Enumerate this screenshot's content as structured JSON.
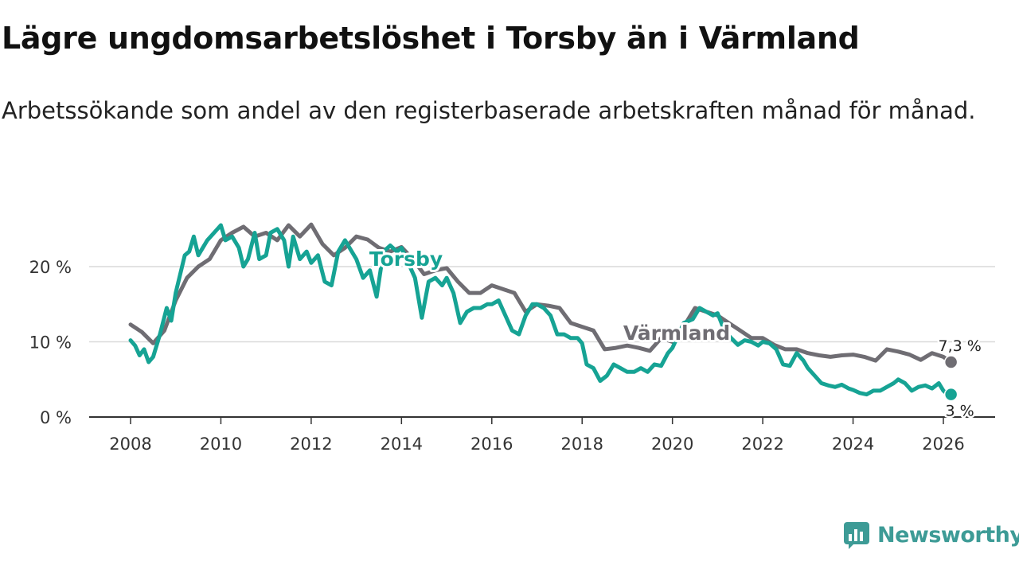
{
  "title": "Lägre ungdomsarbetslöshet i Torsby än i Värmland",
  "subtitle": "Arbetssökande som andel av den registerbaserade arbetskraften månad för månad.",
  "brand": {
    "name": "Newsworthy",
    "icon": "newsworthy-logo-icon",
    "color": "#3d9b96"
  },
  "colors": {
    "torsby": "#16a394",
    "varmland": "#6f6d73",
    "grid": "#d9d9d9",
    "axis": "#333333"
  },
  "chart_data": {
    "type": "line",
    "title": "Lägre ungdomsarbetslöshet i Torsby än i Värmland",
    "xlabel": "",
    "ylabel": "",
    "xlim": [
      2007.5,
      2026.75
    ],
    "ylim": [
      0,
      30
    ],
    "y_ticks": [
      0,
      10,
      20
    ],
    "y_tick_labels": [
      "0 %",
      "10 %",
      "20 %"
    ],
    "x_ticks": [
      2008,
      2010,
      2012,
      2014,
      2016,
      2018,
      2020,
      2022,
      2024,
      2026
    ],
    "x_tick_labels": [
      "2008",
      "2010",
      "2012",
      "2014",
      "2016",
      "2018",
      "2020",
      "2022",
      "2024",
      "2026"
    ],
    "grid": true,
    "series": [
      {
        "name": "Värmland",
        "label": "Värmland",
        "end_label": "7,3 %",
        "end_value": 7.3,
        "points": [
          [
            2008.0,
            12.3
          ],
          [
            2008.25,
            11.3
          ],
          [
            2008.5,
            9.8
          ],
          [
            2008.75,
            11.5
          ],
          [
            2009.0,
            15.5
          ],
          [
            2009.25,
            18.5
          ],
          [
            2009.5,
            20.0
          ],
          [
            2009.75,
            21.0
          ],
          [
            2010.0,
            23.5
          ],
          [
            2010.25,
            24.5
          ],
          [
            2010.5,
            25.3
          ],
          [
            2010.75,
            24.0
          ],
          [
            2011.0,
            24.5
          ],
          [
            2011.25,
            23.5
          ],
          [
            2011.5,
            25.5
          ],
          [
            2011.75,
            24.0
          ],
          [
            2012.0,
            25.6
          ],
          [
            2012.25,
            23.0
          ],
          [
            2012.5,
            21.5
          ],
          [
            2012.75,
            22.5
          ],
          [
            2013.0,
            24.0
          ],
          [
            2013.25,
            23.6
          ],
          [
            2013.5,
            22.5
          ],
          [
            2013.75,
            22.0
          ],
          [
            2014.0,
            22.6
          ],
          [
            2014.25,
            21.0
          ],
          [
            2014.5,
            19.0
          ],
          [
            2014.75,
            19.5
          ],
          [
            2015.0,
            19.8
          ],
          [
            2015.25,
            18.0
          ],
          [
            2015.5,
            16.5
          ],
          [
            2015.75,
            16.5
          ],
          [
            2016.0,
            17.5
          ],
          [
            2016.25,
            17.0
          ],
          [
            2016.5,
            16.5
          ],
          [
            2016.75,
            14.0
          ],
          [
            2017.0,
            15.0
          ],
          [
            2017.25,
            14.8
          ],
          [
            2017.5,
            14.5
          ],
          [
            2017.75,
            12.5
          ],
          [
            2018.0,
            12.0
          ],
          [
            2018.25,
            11.5
          ],
          [
            2018.5,
            9.0
          ],
          [
            2018.75,
            9.2
          ],
          [
            2019.0,
            9.5
          ],
          [
            2019.25,
            9.2
          ],
          [
            2019.5,
            8.8
          ],
          [
            2019.75,
            10.5
          ],
          [
            2020.0,
            10.0
          ],
          [
            2020.25,
            12.0
          ],
          [
            2020.5,
            14.5
          ],
          [
            2020.75,
            14.0
          ],
          [
            2021.0,
            13.5
          ],
          [
            2021.25,
            12.5
          ],
          [
            2021.5,
            11.5
          ],
          [
            2021.75,
            10.5
          ],
          [
            2022.0,
            10.5
          ],
          [
            2022.25,
            9.6
          ],
          [
            2022.5,
            9.0
          ],
          [
            2022.75,
            9.0
          ],
          [
            2023.0,
            8.5
          ],
          [
            2023.25,
            8.2
          ],
          [
            2023.5,
            8.0
          ],
          [
            2023.75,
            8.2
          ],
          [
            2024.0,
            8.3
          ],
          [
            2024.25,
            8.0
          ],
          [
            2024.5,
            7.5
          ],
          [
            2024.75,
            9.0
          ],
          [
            2025.0,
            8.7
          ],
          [
            2025.25,
            8.3
          ],
          [
            2025.5,
            7.6
          ],
          [
            2025.75,
            8.5
          ],
          [
            2026.0,
            8.0
          ],
          [
            2026.17,
            7.3
          ]
        ]
      },
      {
        "name": "Torsby",
        "label": "Torsby",
        "end_label": "3 %",
        "end_value": 3.0,
        "points": [
          [
            2008.0,
            10.2
          ],
          [
            2008.1,
            9.5
          ],
          [
            2008.2,
            8.2
          ],
          [
            2008.3,
            9.0
          ],
          [
            2008.4,
            7.3
          ],
          [
            2008.5,
            8.0
          ],
          [
            2008.65,
            11.0
          ],
          [
            2008.8,
            14.5
          ],
          [
            2008.9,
            12.8
          ],
          [
            2009.0,
            16.5
          ],
          [
            2009.2,
            21.5
          ],
          [
            2009.3,
            22.0
          ],
          [
            2009.4,
            24.0
          ],
          [
            2009.5,
            21.5
          ],
          [
            2009.7,
            23.5
          ],
          [
            2009.85,
            24.5
          ],
          [
            2010.0,
            25.5
          ],
          [
            2010.1,
            23.5
          ],
          [
            2010.25,
            24.0
          ],
          [
            2010.4,
            22.5
          ],
          [
            2010.5,
            20.0
          ],
          [
            2010.6,
            21.0
          ],
          [
            2010.75,
            24.5
          ],
          [
            2010.85,
            21.0
          ],
          [
            2011.0,
            21.5
          ],
          [
            2011.1,
            24.5
          ],
          [
            2011.25,
            25.0
          ],
          [
            2011.4,
            23.5
          ],
          [
            2011.5,
            20.0
          ],
          [
            2011.6,
            24.0
          ],
          [
            2011.75,
            21.0
          ],
          [
            2011.9,
            22.0
          ],
          [
            2012.0,
            20.5
          ],
          [
            2012.15,
            21.5
          ],
          [
            2012.3,
            18.0
          ],
          [
            2012.45,
            17.5
          ],
          [
            2012.6,
            22.0
          ],
          [
            2012.75,
            23.5
          ],
          [
            2012.9,
            22.0
          ],
          [
            2013.0,
            21.0
          ],
          [
            2013.15,
            18.5
          ],
          [
            2013.3,
            19.5
          ],
          [
            2013.45,
            16.0
          ],
          [
            2013.6,
            22.0
          ],
          [
            2013.75,
            22.8
          ],
          [
            2013.9,
            22.0
          ],
          [
            2014.0,
            22.5
          ],
          [
            2014.15,
            20.5
          ],
          [
            2014.3,
            18.5
          ],
          [
            2014.45,
            13.2
          ],
          [
            2014.6,
            18.0
          ],
          [
            2014.75,
            18.5
          ],
          [
            2014.9,
            17.5
          ],
          [
            2015.0,
            18.5
          ],
          [
            2015.15,
            16.5
          ],
          [
            2015.3,
            12.5
          ],
          [
            2015.45,
            14.0
          ],
          [
            2015.6,
            14.5
          ],
          [
            2015.75,
            14.5
          ],
          [
            2015.9,
            15.0
          ],
          [
            2016.0,
            15.0
          ],
          [
            2016.15,
            15.5
          ],
          [
            2016.3,
            13.5
          ],
          [
            2016.45,
            11.5
          ],
          [
            2016.6,
            11.0
          ],
          [
            2016.75,
            13.5
          ],
          [
            2016.9,
            15.0
          ],
          [
            2017.0,
            15.0
          ],
          [
            2017.15,
            14.5
          ],
          [
            2017.3,
            13.5
          ],
          [
            2017.45,
            11.0
          ],
          [
            2017.6,
            11.0
          ],
          [
            2017.75,
            10.5
          ],
          [
            2017.9,
            10.5
          ],
          [
            2018.0,
            9.8
          ],
          [
            2018.1,
            7.0
          ],
          [
            2018.25,
            6.5
          ],
          [
            2018.4,
            4.8
          ],
          [
            2018.55,
            5.5
          ],
          [
            2018.7,
            7.0
          ],
          [
            2018.85,
            6.5
          ],
          [
            2019.0,
            6.0
          ],
          [
            2019.15,
            6.0
          ],
          [
            2019.3,
            6.5
          ],
          [
            2019.45,
            6.0
          ],
          [
            2019.6,
            7.0
          ],
          [
            2019.75,
            6.8
          ],
          [
            2019.9,
            8.5
          ],
          [
            2020.0,
            9.2
          ],
          [
            2020.25,
            12.5
          ],
          [
            2020.45,
            13.0
          ],
          [
            2020.6,
            14.5
          ],
          [
            2020.75,
            14.0
          ],
          [
            2020.9,
            13.5
          ],
          [
            2021.0,
            13.8
          ],
          [
            2021.15,
            11.5
          ],
          [
            2021.3,
            10.5
          ],
          [
            2021.45,
            9.6
          ],
          [
            2021.6,
            10.2
          ],
          [
            2021.75,
            10.0
          ],
          [
            2021.9,
            9.5
          ],
          [
            2022.0,
            10.0
          ],
          [
            2022.15,
            9.8
          ],
          [
            2022.3,
            9.0
          ],
          [
            2022.45,
            7.0
          ],
          [
            2022.6,
            6.8
          ],
          [
            2022.75,
            8.5
          ],
          [
            2022.9,
            7.5
          ],
          [
            2023.0,
            6.5
          ],
          [
            2023.15,
            5.5
          ],
          [
            2023.3,
            4.5
          ],
          [
            2023.45,
            4.2
          ],
          [
            2023.6,
            4.0
          ],
          [
            2023.75,
            4.3
          ],
          [
            2023.9,
            3.8
          ],
          [
            2024.0,
            3.6
          ],
          [
            2024.15,
            3.2
          ],
          [
            2024.3,
            3.0
          ],
          [
            2024.45,
            3.5
          ],
          [
            2024.6,
            3.5
          ],
          [
            2024.75,
            4.0
          ],
          [
            2024.9,
            4.5
          ],
          [
            2025.0,
            5.0
          ],
          [
            2025.15,
            4.5
          ],
          [
            2025.3,
            3.5
          ],
          [
            2025.45,
            4.0
          ],
          [
            2025.6,
            4.2
          ],
          [
            2025.75,
            3.8
          ],
          [
            2025.9,
            4.5
          ],
          [
            2026.0,
            3.5
          ],
          [
            2026.1,
            3.0
          ],
          [
            2026.17,
            3.0
          ]
        ]
      }
    ]
  }
}
